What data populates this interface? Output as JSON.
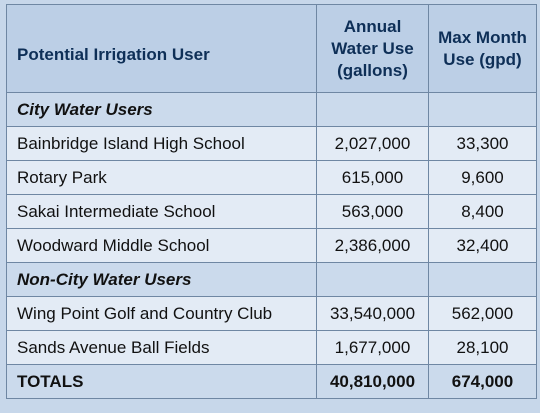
{
  "table": {
    "headers": {
      "user": "Potential Irrigation User",
      "annual": "Annual Water Use (gallons)",
      "max_month": "Max Month Use (gpd)"
    },
    "sections": [
      {
        "title": "City Water Users",
        "rows": [
          {
            "user": "Bainbridge Island High School",
            "annual": "2,027,000",
            "max_month": "33,300"
          },
          {
            "user": "Rotary Park",
            "annual": "615,000",
            "max_month": "9,600"
          },
          {
            "user": "Sakai Intermediate School",
            "annual": "563,000",
            "max_month": "8,400"
          },
          {
            "user": "Woodward Middle School",
            "annual": "2,386,000",
            "max_month": "32,400"
          }
        ]
      },
      {
        "title": "Non-City Water Users",
        "rows": [
          {
            "user": "Wing Point Golf and Country Club",
            "annual": "33,540,000",
            "max_month": "562,000"
          },
          {
            "user": "Sands Avenue Ball Fields",
            "annual": "1,677,000",
            "max_month": "28,100"
          }
        ]
      }
    ],
    "totals": {
      "label": "TOTALS",
      "annual": "40,810,000",
      "max_month": "674,000"
    }
  },
  "colors": {
    "header_bg": "#bccfe6",
    "header_text": "#0e2f57",
    "row_bg": "#e3ebf5",
    "section_bg": "#cbdaec",
    "border": "#6f87a3"
  }
}
